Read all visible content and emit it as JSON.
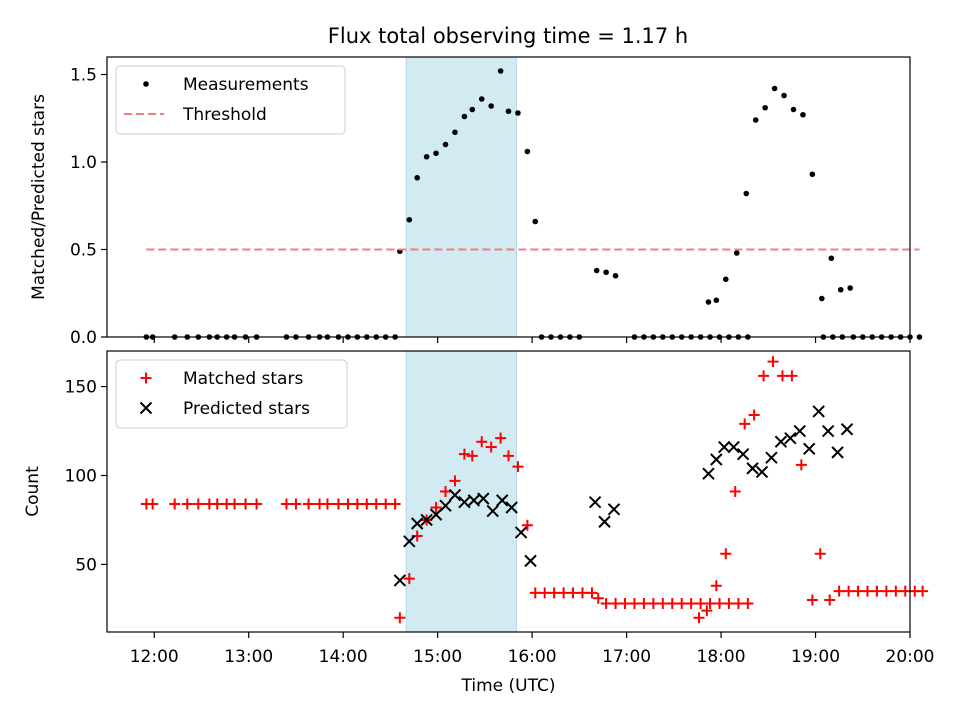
{
  "title": "Flux total observing time = 1.17 h",
  "colors": {
    "measurement": "#000000",
    "threshold": "#f08080",
    "matched": "#ff0000",
    "predicted": "#000000",
    "shade": "#add8e6"
  },
  "chart_data": [
    {
      "type": "scatter",
      "ylabel": "Matched/Predicted stars",
      "ylim": [
        0,
        1.6
      ],
      "yticks": [
        0.0,
        0.5,
        1.0,
        1.5
      ],
      "ytick_labels": [
        "0.0",
        "0.5",
        "1.0",
        "1.5"
      ],
      "xlim": [
        "11:30",
        "20:00"
      ],
      "grid": false,
      "legend_position": "upper left",
      "shaded_span": [
        "14:40",
        "15:50"
      ],
      "series": [
        {
          "name": "Measurements",
          "marker": "dot",
          "points": [
            [
              "11:55",
              0
            ],
            [
              "11:59",
              0
            ],
            [
              "12:13",
              0
            ],
            [
              "12:21",
              0
            ],
            [
              "12:28",
              0
            ],
            [
              "12:35",
              0
            ],
            [
              "12:40",
              0
            ],
            [
              "12:46",
              0
            ],
            [
              "12:51",
              0
            ],
            [
              "12:58",
              0
            ],
            [
              "13:05",
              0
            ],
            [
              "13:24",
              0
            ],
            [
              "13:30",
              0
            ],
            [
              "13:38",
              0
            ],
            [
              "13:45",
              0
            ],
            [
              "13:50",
              0
            ],
            [
              "13:57",
              0
            ],
            [
              "14:03",
              0
            ],
            [
              "14:09",
              0
            ],
            [
              "14:15",
              0
            ],
            [
              "14:21",
              0
            ],
            [
              "14:27",
              0
            ],
            [
              "14:33",
              0
            ],
            [
              "14:36",
              0.49
            ],
            [
              "14:42",
              0.67
            ],
            [
              "14:47",
              0.91
            ],
            [
              "14:53",
              1.03
            ],
            [
              "14:59",
              1.05
            ],
            [
              "15:05",
              1.1
            ],
            [
              "15:11",
              1.17
            ],
            [
              "15:17",
              1.26
            ],
            [
              "15:22",
              1.3
            ],
            [
              "15:28",
              1.36
            ],
            [
              "15:34",
              1.32
            ],
            [
              "15:40",
              1.52
            ],
            [
              "15:45",
              1.29
            ],
            [
              "15:51",
              1.28
            ],
            [
              "15:57",
              1.06
            ],
            [
              "16:02",
              0.66
            ],
            [
              "16:06",
              0
            ],
            [
              "16:12",
              0
            ],
            [
              "16:18",
              0
            ],
            [
              "16:24",
              0
            ],
            [
              "16:30",
              0
            ],
            [
              "16:41",
              0.38
            ],
            [
              "16:47",
              0.37
            ],
            [
              "16:53",
              0.35
            ],
            [
              "17:05",
              0
            ],
            [
              "17:11",
              0
            ],
            [
              "17:17",
              0
            ],
            [
              "17:23",
              0
            ],
            [
              "17:29",
              0
            ],
            [
              "17:35",
              0
            ],
            [
              "17:41",
              0
            ],
            [
              "17:47",
              0
            ],
            [
              "17:53",
              0
            ],
            [
              "17:59",
              0
            ],
            [
              "18:05",
              0
            ],
            [
              "18:11",
              0
            ],
            [
              "18:17",
              0
            ],
            [
              "17:52",
              0.2
            ],
            [
              "17:57",
              0.21
            ],
            [
              "18:03",
              0.33
            ],
            [
              "18:10",
              0.48
            ],
            [
              "18:16",
              0.82
            ],
            [
              "18:22",
              1.24
            ],
            [
              "18:28",
              1.31
            ],
            [
              "18:34",
              1.42
            ],
            [
              "18:40",
              1.38
            ],
            [
              "18:46",
              1.3
            ],
            [
              "18:52",
              1.27
            ],
            [
              "18:58",
              0.93
            ],
            [
              "19:04",
              0.22
            ],
            [
              "19:10",
              0.45
            ],
            [
              "19:16",
              0.27
            ],
            [
              "19:22",
              0.28
            ],
            [
              "19:05",
              0
            ],
            [
              "19:11",
              0
            ],
            [
              "19:17",
              0
            ],
            [
              "19:24",
              0
            ],
            [
              "19:30",
              0
            ],
            [
              "19:36",
              0
            ],
            [
              "19:42",
              0
            ],
            [
              "19:48",
              0
            ],
            [
              "19:54",
              0
            ],
            [
              "20:00",
              0
            ],
            [
              "20:06",
              0
            ]
          ]
        },
        {
          "name": "Threshold",
          "style": "dashed-line",
          "points": [
            [
              "11:55",
              0.5
            ],
            [
              "20:06",
              0.5
            ]
          ]
        }
      ]
    },
    {
      "type": "scatter",
      "xlabel": "Time (UTC)",
      "ylabel": "Count",
      "ylim": [
        12,
        170
      ],
      "yticks": [
        50,
        100,
        150
      ],
      "ytick_labels": [
        "50",
        "100",
        "150"
      ],
      "xlim": [
        "11:30",
        "20:00"
      ],
      "xticks": [
        "12:00",
        "13:00",
        "14:00",
        "15:00",
        "16:00",
        "17:00",
        "18:00",
        "19:00",
        "20:00"
      ],
      "grid": false,
      "legend_position": "upper left",
      "shaded_span": [
        "14:40",
        "15:50"
      ],
      "series": [
        {
          "name": "Matched stars",
          "marker": "plus",
          "points": [
            [
              "11:55",
              84
            ],
            [
              "11:59",
              84
            ],
            [
              "12:13",
              84
            ],
            [
              "12:21",
              84
            ],
            [
              "12:28",
              84
            ],
            [
              "12:35",
              84
            ],
            [
              "12:40",
              84
            ],
            [
              "12:46",
              84
            ],
            [
              "12:51",
              84
            ],
            [
              "12:58",
              84
            ],
            [
              "13:05",
              84
            ],
            [
              "13:24",
              84
            ],
            [
              "13:30",
              84
            ],
            [
              "13:38",
              84
            ],
            [
              "13:45",
              84
            ],
            [
              "13:50",
              84
            ],
            [
              "13:57",
              84
            ],
            [
              "14:03",
              84
            ],
            [
              "14:09",
              84
            ],
            [
              "14:15",
              84
            ],
            [
              "14:21",
              84
            ],
            [
              "14:27",
              84
            ],
            [
              "14:33",
              84
            ],
            [
              "14:36",
              20
            ],
            [
              "14:42",
              42
            ],
            [
              "14:47",
              66
            ],
            [
              "14:53",
              75
            ],
            [
              "14:59",
              82
            ],
            [
              "15:05",
              91
            ],
            [
              "15:11",
              97
            ],
            [
              "15:17",
              112
            ],
            [
              "15:22",
              111
            ],
            [
              "15:28",
              119
            ],
            [
              "15:34",
              116
            ],
            [
              "15:40",
              121
            ],
            [
              "15:45",
              111
            ],
            [
              "15:51",
              105
            ],
            [
              "15:57",
              72
            ],
            [
              "16:02",
              34
            ],
            [
              "16:08",
              34
            ],
            [
              "16:14",
              34
            ],
            [
              "16:20",
              34
            ],
            [
              "16:26",
              34
            ],
            [
              "16:32",
              34
            ],
            [
              "16:38",
              34
            ],
            [
              "16:42",
              31
            ],
            [
              "16:47",
              28
            ],
            [
              "16:53",
              28
            ],
            [
              "16:59",
              28
            ],
            [
              "17:05",
              28
            ],
            [
              "17:11",
              28
            ],
            [
              "17:17",
              28
            ],
            [
              "17:23",
              28
            ],
            [
              "17:29",
              28
            ],
            [
              "17:35",
              28
            ],
            [
              "17:41",
              28
            ],
            [
              "17:47",
              28
            ],
            [
              "17:53",
              28
            ],
            [
              "17:59",
              28
            ],
            [
              "18:05",
              28
            ],
            [
              "18:11",
              28
            ],
            [
              "18:17",
              28
            ],
            [
              "17:46",
              20
            ],
            [
              "17:51",
              24
            ],
            [
              "17:57",
              38
            ],
            [
              "18:03",
              56
            ],
            [
              "18:09",
              91
            ],
            [
              "18:15",
              129
            ],
            [
              "18:21",
              134
            ],
            [
              "18:27",
              156
            ],
            [
              "18:33",
              164
            ],
            [
              "18:39",
              156
            ],
            [
              "18:45",
              156
            ],
            [
              "18:51",
              106
            ],
            [
              "18:58",
              30
            ],
            [
              "19:03",
              56
            ],
            [
              "19:09",
              30
            ],
            [
              "19:15",
              35
            ],
            [
              "19:21",
              35
            ],
            [
              "19:27",
              35
            ],
            [
              "19:33",
              35
            ],
            [
              "19:39",
              35
            ],
            [
              "19:45",
              35
            ],
            [
              "19:51",
              35
            ],
            [
              "19:57",
              35
            ],
            [
              "20:03",
              35
            ],
            [
              "20:08",
              35
            ]
          ]
        },
        {
          "name": "Predicted stars",
          "marker": "x",
          "points": [
            [
              "14:36",
              41
            ],
            [
              "14:42",
              63
            ],
            [
              "14:47",
              73
            ],
            [
              "14:53",
              75
            ],
            [
              "14:59",
              78
            ],
            [
              "15:05",
              83
            ],
            [
              "15:11",
              89
            ],
            [
              "15:17",
              85
            ],
            [
              "15:23",
              86
            ],
            [
              "15:29",
              87
            ],
            [
              "15:35",
              80
            ],
            [
              "15:41",
              86
            ],
            [
              "15:47",
              82
            ],
            [
              "15:53",
              68
            ],
            [
              "15:59",
              52
            ],
            [
              "16:40",
              85
            ],
            [
              "16:46",
              74
            ],
            [
              "16:52",
              81
            ],
            [
              "17:52",
              101
            ],
            [
              "17:57",
              109
            ],
            [
              "18:02",
              116
            ],
            [
              "18:08",
              116
            ],
            [
              "18:14",
              112
            ],
            [
              "18:20",
              104
            ],
            [
              "18:26",
              102
            ],
            [
              "18:32",
              110
            ],
            [
              "18:38",
              119
            ],
            [
              "18:44",
              121
            ],
            [
              "18:50",
              125
            ],
            [
              "18:56",
              115
            ],
            [
              "19:02",
              136
            ],
            [
              "19:08",
              125
            ],
            [
              "19:14",
              113
            ],
            [
              "19:20",
              126
            ]
          ]
        }
      ]
    }
  ]
}
